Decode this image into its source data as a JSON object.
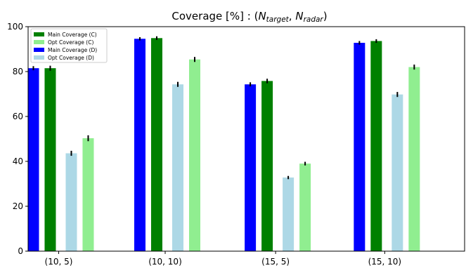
{
  "chart_data": {
    "type": "bar",
    "title": "Coverage [%] : (N_target, N_radar)",
    "title_parts": {
      "prefix": "Coverage [%] : (",
      "n1": "N",
      "sub1": "target",
      "sep": ", ",
      "n2": "N",
      "sub2": "radar",
      "suffix": ")"
    },
    "categories": [
      "(10, 5)",
      "(10, 10)",
      "(15, 5)",
      "(15, 10)"
    ],
    "ylim": [
      0,
      100
    ],
    "yticks": [
      0,
      20,
      40,
      60,
      80,
      100
    ],
    "xlabel": "",
    "ylabel": "",
    "grid": false,
    "legend_position": "top-left",
    "series": [
      {
        "name": "Main Coverage (D)",
        "color": "#0000ff",
        "values": [
          81.5,
          94.6,
          74.3,
          92.8
        ],
        "errors": [
          0.6,
          0.4,
          0.6,
          0.5
        ]
      },
      {
        "name": "Main Coverage (C)",
        "color": "#008000",
        "values": [
          81.5,
          94.9,
          75.8,
          93.6
        ],
        "errors": [
          0.8,
          0.5,
          0.7,
          0.5
        ]
      },
      {
        "name": "Opt Coverage (D)",
        "color": "#add8e6",
        "values": [
          43.6,
          74.3,
          32.8,
          69.8
        ],
        "errors": [
          0.8,
          0.8,
          0.4,
          0.8
        ]
      },
      {
        "name": "Opt Coverage (C)",
        "color": "#90ee90",
        "values": [
          50.3,
          85.4,
          39.0,
          82.0
        ],
        "errors": [
          1.0,
          0.8,
          0.5,
          0.8
        ]
      }
    ],
    "legend_order": [
      1,
      3,
      0,
      2
    ]
  }
}
